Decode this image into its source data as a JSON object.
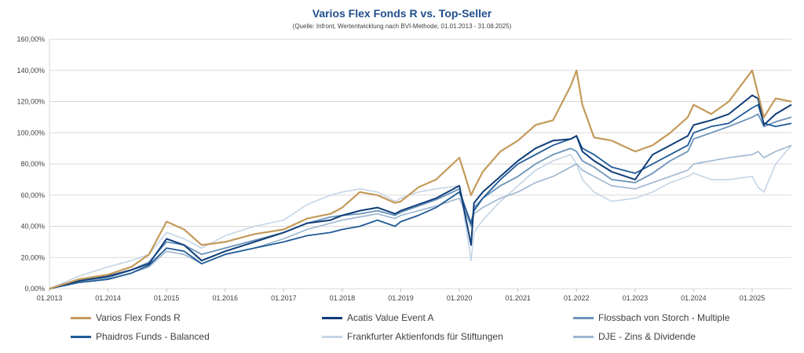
{
  "header": {
    "title": "Varios Flex Fonds R vs. Top-Seller",
    "subtitle": "(Quelle: Infront, Wertentwicklung nach BVI-Methode, 01.01.2013 - 31.08.2025)"
  },
  "chart_data": {
    "type": "line",
    "title": "Varios Flex Fonds R vs. Top-Seller",
    "subtitle": "(Quelle: Infront, Wertentwicklung nach BVI-Methode, 01.01.2013 - 31.08.2025)",
    "x": [
      "01.2013",
      "01.2014",
      "01.2015",
      "01.2016",
      "01.2017",
      "01.2018",
      "01.2019",
      "01.2020",
      "01.2021",
      "01.2022",
      "01.2023",
      "01.2024",
      "01.2025"
    ],
    "x_ticks": [
      "01.2013",
      "01.2014",
      "01.2015",
      "01.2016",
      "01.2017",
      "01.2018",
      "01.2019",
      "01.2020",
      "01.2021",
      "01.2022",
      "01.2023",
      "01.2024",
      "01.2025"
    ],
    "y_ticks": [
      "0,00%",
      "20,00%",
      "40,00%",
      "60,00%",
      "80,00%",
      "100,00%",
      "120,00%",
      "140,00%",
      "160,00%"
    ],
    "ylim": [
      0,
      160
    ],
    "grid": true,
    "legend_position": "bottom",
    "series": [
      {
        "name": "Varios Flex Fonds R",
        "color": "#c49a5a",
        "width": 2.2,
        "x": [
          0,
          0.5,
          1,
          1.4,
          1.7,
          2,
          2.3,
          2.6,
          3,
          3.5,
          4,
          4.4,
          4.8,
          5,
          5.3,
          5.6,
          5.9,
          6,
          6.3,
          6.6,
          7,
          7.2,
          7.25,
          7.4,
          7.7,
          8,
          8.3,
          8.6,
          8.9,
          9,
          9.1,
          9.3,
          9.6,
          10,
          10.3,
          10.6,
          10.9,
          11,
          11.3,
          11.6,
          12,
          12.1,
          12.2,
          12.4,
          12.67
        ],
        "values": [
          0,
          6,
          9,
          14,
          22,
          43,
          38,
          28,
          30,
          35,
          38,
          45,
          48,
          52,
          62,
          60,
          55,
          56,
          65,
          70,
          84,
          60,
          64,
          75,
          88,
          95,
          105,
          108,
          130,
          140,
          118,
          97,
          95,
          88,
          92,
          100,
          110,
          118,
          112,
          120,
          140,
          125,
          110,
          122,
          120
        ]
      },
      {
        "name": "Acatis Value Event A",
        "color": "#0f3d78",
        "width": 2.0,
        "x": [
          0,
          0.5,
          1,
          1.4,
          1.7,
          2,
          2.3,
          2.6,
          3,
          3.5,
          4,
          4.4,
          4.8,
          5,
          5.3,
          5.6,
          5.9,
          6,
          6.3,
          6.6,
          7,
          7.2,
          7.25,
          7.4,
          7.7,
          8,
          8.3,
          8.6,
          8.9,
          9,
          9.1,
          9.3,
          9.6,
          10,
          10.3,
          10.6,
          10.9,
          11,
          11.3,
          11.6,
          12,
          12.1,
          12.2,
          12.4,
          12.67
        ],
        "values": [
          0,
          5,
          8,
          12,
          16,
          32,
          28,
          18,
          24,
          30,
          36,
          42,
          44,
          47,
          50,
          52,
          48,
          50,
          54,
          58,
          66,
          28,
          55,
          62,
          72,
          82,
          90,
          95,
          96,
          98,
          88,
          82,
          75,
          70,
          86,
          92,
          98,
          105,
          108,
          112,
          124,
          122,
          105,
          112,
          118
        ]
      },
      {
        "name": "Flossbach von Storch - Multiple",
        "color": "#6b93b8",
        "width": 1.8,
        "x": [
          0,
          0.5,
          1,
          1.4,
          1.7,
          2,
          2.3,
          2.6,
          3,
          3.5,
          4,
          4.4,
          4.8,
          5,
          5.3,
          5.6,
          5.9,
          6,
          6.3,
          6.6,
          7,
          7.2,
          7.25,
          7.4,
          7.7,
          8,
          8.3,
          8.6,
          8.9,
          9,
          9.1,
          9.3,
          9.6,
          10,
          10.3,
          10.6,
          10.9,
          11,
          11.3,
          11.6,
          12,
          12.1,
          12.2,
          12.4,
          12.67
        ],
        "values": [
          0,
          5,
          7,
          12,
          17,
          30,
          28,
          22,
          26,
          31,
          36,
          42,
          46,
          47,
          48,
          50,
          47,
          49,
          53,
          57,
          64,
          40,
          52,
          58,
          66,
          72,
          80,
          86,
          90,
          88,
          82,
          78,
          70,
          68,
          74,
          82,
          88,
          96,
          100,
          104,
          110,
          112,
          104,
          107,
          110
        ]
      },
      {
        "name": "Phaidros Funds - Balanced",
        "color": "#1f5a96",
        "width": 1.8,
        "x": [
          0,
          0.5,
          1,
          1.4,
          1.7,
          2,
          2.3,
          2.6,
          3,
          3.5,
          4,
          4.4,
          4.8,
          5,
          5.3,
          5.6,
          5.9,
          6,
          6.3,
          6.6,
          7,
          7.2,
          7.25,
          7.4,
          7.7,
          8,
          8.3,
          8.6,
          8.9,
          9,
          9.1,
          9.3,
          9.6,
          10,
          10.3,
          10.6,
          10.9,
          11,
          11.3,
          11.6,
          12,
          12.1,
          12.2,
          12.4,
          12.67
        ],
        "values": [
          0,
          4,
          6,
          10,
          15,
          26,
          24,
          16,
          22,
          26,
          30,
          34,
          36,
          38,
          40,
          44,
          40,
          43,
          47,
          52,
          62,
          42,
          50,
          58,
          70,
          80,
          86,
          92,
          96,
          98,
          90,
          86,
          78,
          74,
          80,
          86,
          92,
          100,
          104,
          106,
          116,
          118,
          106,
          104,
          106
        ]
      },
      {
        "name": "Frankfurter Aktienfonds für Stiftungen",
        "color": "#c5d5e6",
        "width": 1.6,
        "x": [
          0,
          0.5,
          1,
          1.4,
          1.7,
          2,
          2.3,
          2.6,
          3,
          3.5,
          4,
          4.4,
          4.8,
          5,
          5.3,
          5.6,
          5.9,
          6,
          6.3,
          6.6,
          7,
          7.2,
          7.25,
          7.4,
          7.7,
          8,
          8.3,
          8.6,
          8.9,
          9,
          9.1,
          9.3,
          9.6,
          10,
          10.3,
          10.6,
          10.9,
          11,
          11.3,
          11.6,
          12,
          12.1,
          12.2,
          12.4,
          12.67
        ],
        "values": [
          0,
          8,
          14,
          18,
          22,
          36,
          32,
          26,
          34,
          40,
          44,
          54,
          60,
          62,
          64,
          62,
          56,
          58,
          62,
          64,
          66,
          18,
          36,
          44,
          56,
          66,
          76,
          82,
          86,
          80,
          70,
          62,
          56,
          58,
          62,
          68,
          72,
          74,
          70,
          70,
          72,
          65,
          62,
          80,
          92
        ]
      },
      {
        "name": "DJE - Zins & Dividende",
        "color": "#9bb5cf",
        "width": 1.6,
        "x": [
          0,
          0.5,
          1,
          1.4,
          1.7,
          2,
          2.3,
          2.6,
          3,
          3.5,
          4,
          4.4,
          4.8,
          5,
          5.3,
          5.6,
          5.9,
          6,
          6.3,
          6.6,
          7,
          7.2,
          7.25,
          7.4,
          7.7,
          8,
          8.3,
          8.6,
          8.9,
          9,
          9.1,
          9.3,
          9.6,
          10,
          10.3,
          10.6,
          10.9,
          11,
          11.3,
          11.6,
          12,
          12.1,
          12.2,
          12.4,
          12.67
        ],
        "values": [
          0,
          4,
          6,
          10,
          14,
          24,
          22,
          16,
          22,
          26,
          32,
          38,
          42,
          44,
          46,
          48,
          45,
          47,
          50,
          53,
          58,
          40,
          48,
          52,
          58,
          62,
          68,
          72,
          78,
          80,
          76,
          72,
          66,
          64,
          68,
          72,
          76,
          80,
          82,
          84,
          86,
          88,
          84,
          88,
          92
        ]
      }
    ]
  },
  "legend": {
    "items": [
      {
        "label": "Varios Flex Fonds R",
        "color": "#c49a5a"
      },
      {
        "label": "Acatis Value Event A",
        "color": "#0f3d78"
      },
      {
        "label": "Flossbach von Storch - Multiple",
        "color": "#6b93b8"
      },
      {
        "label": "Phaidros Funds - Balanced",
        "color": "#1f5a96"
      },
      {
        "label": "Frankfurter Aktienfonds für Stiftungen",
        "color": "#c5d5e6"
      },
      {
        "label": "DJE - Zins & Dividende",
        "color": "#9bb5cf"
      }
    ]
  }
}
